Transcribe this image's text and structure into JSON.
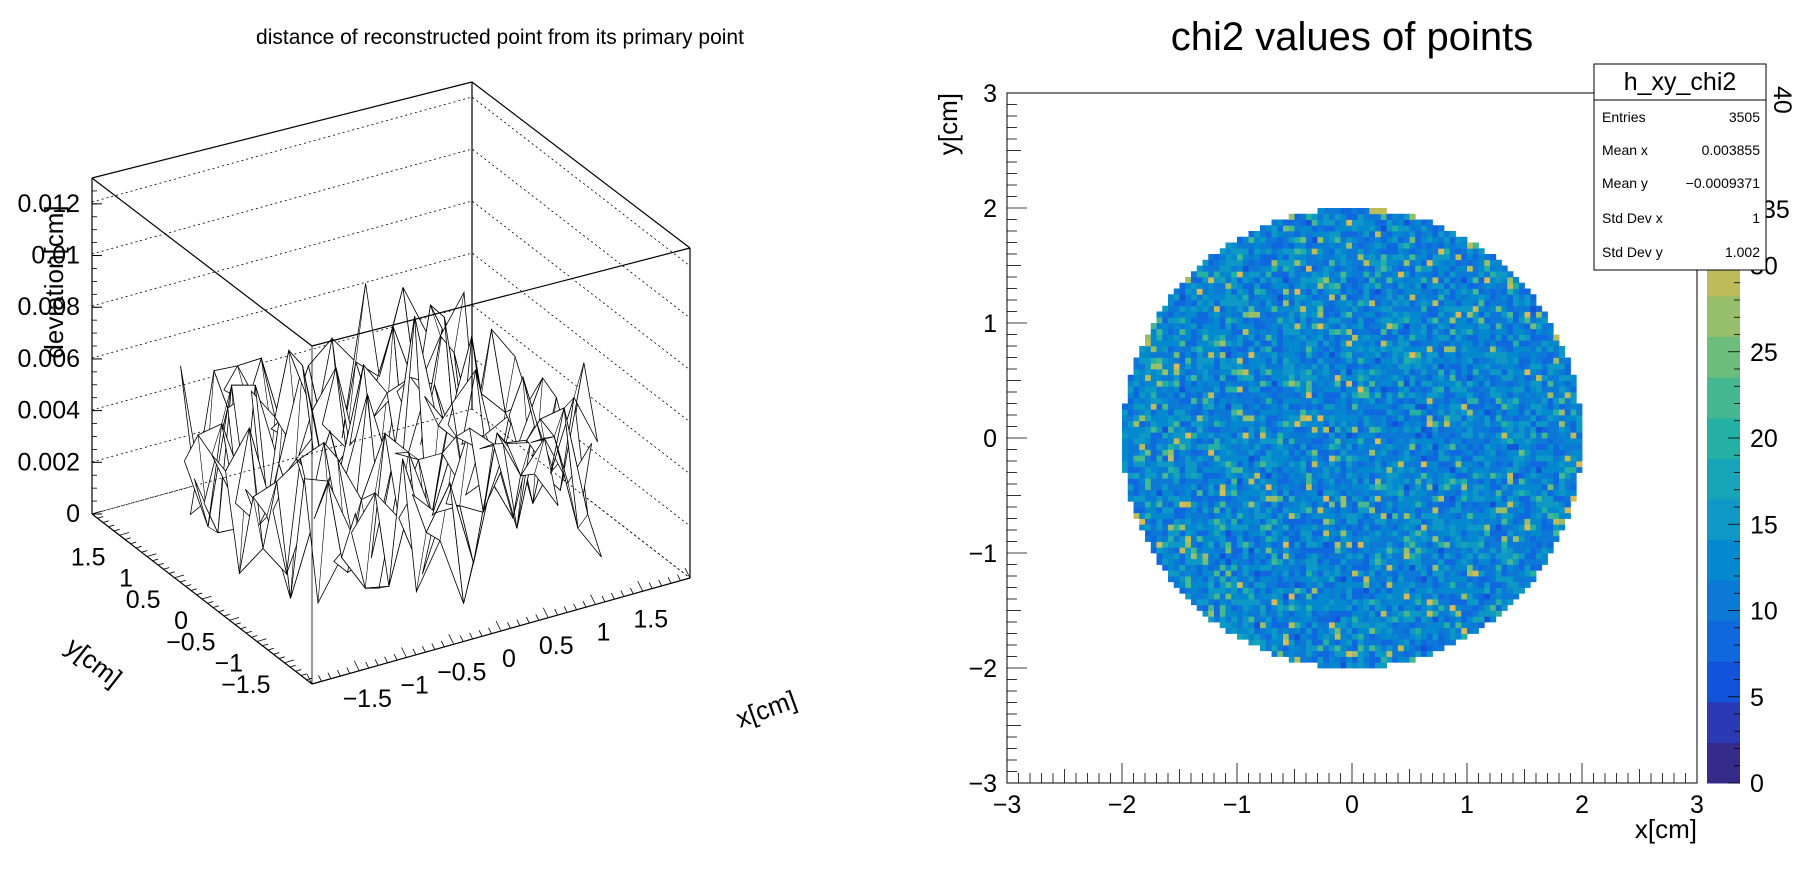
{
  "chart_data": [
    {
      "type": "surface",
      "title": "distance of reconstructed point from its primary point",
      "xlabel": "x[cm]",
      "ylabel": "y[cm]",
      "zlabel": "deviation[cm]",
      "xlim": [
        -2,
        2
      ],
      "ylim": [
        -2,
        2
      ],
      "zlim": [
        0,
        0.013
      ],
      "x_ticks": [
        "−1.5",
        "−1",
        "−0.5",
        "0",
        "0.5",
        "1",
        "1.5"
      ],
      "y_ticks": [
        "−1.5",
        "−1",
        "−0.5",
        "0",
        "0.5",
        "1",
        "1.5"
      ],
      "z_ticks": [
        "0",
        "0.002",
        "0.004",
        "0.006",
        "0.008",
        "0.01",
        "0.012"
      ],
      "disk_radius": 2,
      "grid_step": 0.25,
      "typical_deviation": 0.003,
      "max_deviation": 0.0125,
      "grid": true
    },
    {
      "type": "heatmap",
      "title": "chi2 values of points",
      "xlabel": "x[cm]",
      "ylabel": "y[cm]",
      "xlim": [
        -3,
        3
      ],
      "ylim": [
        -3,
        3
      ],
      "x_ticks": [
        "−3",
        "−2",
        "−1",
        "0",
        "1",
        "2",
        "3"
      ],
      "y_ticks": [
        "−3",
        "−2",
        "−1",
        "0",
        "1",
        "2",
        "3"
      ],
      "z_ticks": [
        "0",
        "5",
        "10",
        "15",
        "20",
        "25",
        "30"
      ],
      "zlim": [
        0,
        40
      ],
      "disk_radius": 2,
      "bin_size": 0.05,
      "typical_chi2": 12,
      "colorbar_colors": [
        "#352a87",
        "#2c39b5",
        "#1254d9",
        "#0f68dd",
        "#0d79d6",
        "#0489cf",
        "#0d98c6",
        "#16a5b8",
        "#25b0a4",
        "#45b891",
        "#6dbd7c",
        "#97bf6b",
        "#bcbd5a",
        "#d9ba56",
        "#f0c240",
        "#f9d52b",
        "#f9fb0e"
      ],
      "stats": {
        "name": "h_xy_chi2",
        "rows": [
          {
            "label": "Entries",
            "value": "3505"
          },
          {
            "label": "Mean x",
            "value": "0.003855"
          },
          {
            "label": "Mean y",
            "value": "−0.0009371"
          },
          {
            "label": "Std Dev x",
            "value": "1"
          },
          {
            "label": "Std Dev y",
            "value": "1.002"
          }
        ]
      },
      "clipped_colorbar_labels": [
        "40",
        "35"
      ]
    }
  ]
}
